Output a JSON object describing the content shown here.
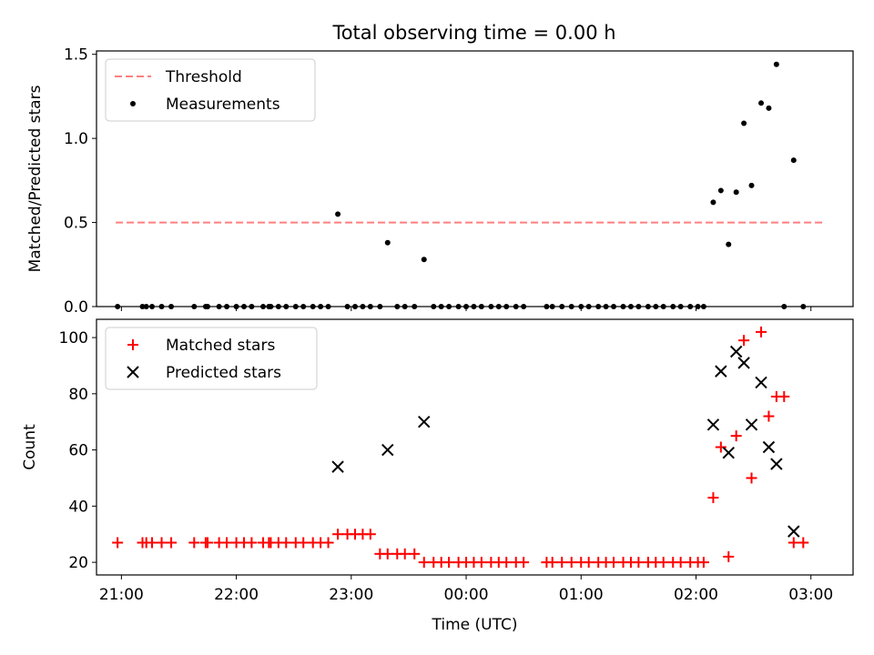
{
  "title": "Total observing time = 0.00 h",
  "chart_data": [
    {
      "type": "scatter",
      "panel": "top",
      "ylabel": "Matched/Predicted stars",
      "ylim": [
        0,
        1.52
      ],
      "xlim": [
        "20:47",
        "03:22"
      ],
      "yticks": [
        0.0,
        0.5,
        1.0,
        1.5
      ],
      "ytick_labels": [
        "0.0",
        "0.5",
        "1.0",
        "1.5"
      ],
      "legend": {
        "placement": "top-left",
        "entries": [
          "Threshold",
          "Measurements"
        ]
      },
      "threshold": {
        "name": "Threshold",
        "y": 0.5,
        "x_start": "20:57",
        "x_end": "03:06",
        "color": "#ff7f7f",
        "style": "dashed"
      },
      "series": [
        {
          "name": "Measurements",
          "color": "#000000",
          "points": [
            [
              "20:58",
              0
            ],
            [
              "21:11",
              0
            ],
            [
              "21:13",
              0
            ],
            [
              "21:16",
              0
            ],
            [
              "21:21",
              0
            ],
            [
              "21:26",
              0
            ],
            [
              "21:38",
              0
            ],
            [
              "21:44",
              0
            ],
            [
              "21:45",
              0
            ],
            [
              "21:51",
              0
            ],
            [
              "21:55",
              0
            ],
            [
              "22:00",
              0
            ],
            [
              "22:04",
              0
            ],
            [
              "22:08",
              0
            ],
            [
              "22:14",
              0
            ],
            [
              "22:17",
              0
            ],
            [
              "22:18",
              0
            ],
            [
              "22:22",
              0
            ],
            [
              "22:26",
              0
            ],
            [
              "22:31",
              0
            ],
            [
              "22:35",
              0
            ],
            [
              "22:40",
              0
            ],
            [
              "22:44",
              0
            ],
            [
              "22:48",
              0
            ],
            [
              "22:53",
              0.55
            ],
            [
              "22:58",
              0
            ],
            [
              "23:02",
              0
            ],
            [
              "23:06",
              0
            ],
            [
              "23:10",
              0
            ],
            [
              "23:19",
              0.38
            ],
            [
              "23:15",
              0
            ],
            [
              "23:24",
              0
            ],
            [
              "23:28",
              0
            ],
            [
              "23:33",
              0
            ],
            [
              "23:38",
              0.28
            ],
            [
              "23:43",
              0
            ],
            [
              "23:47",
              0
            ],
            [
              "23:51",
              0
            ],
            [
              "23:56",
              0
            ],
            [
              "00:00",
              0
            ],
            [
              "00:04",
              0
            ],
            [
              "00:08",
              0
            ],
            [
              "00:13",
              0
            ],
            [
              "00:17",
              0
            ],
            [
              "00:21",
              0
            ],
            [
              "00:26",
              0
            ],
            [
              "00:30",
              0
            ],
            [
              "00:42",
              0
            ],
            [
              "00:45",
              0
            ],
            [
              "00:50",
              0
            ],
            [
              "00:55",
              0
            ],
            [
              "01:00",
              0
            ],
            [
              "01:04",
              0
            ],
            [
              "01:09",
              0
            ],
            [
              "01:13",
              0
            ],
            [
              "01:17",
              0
            ],
            [
              "01:22",
              0
            ],
            [
              "01:26",
              0
            ],
            [
              "01:30",
              0
            ],
            [
              "01:35",
              0
            ],
            [
              "01:39",
              0
            ],
            [
              "01:43",
              0
            ],
            [
              "01:48",
              0
            ],
            [
              "01:52",
              0
            ],
            [
              "01:57",
              0
            ],
            [
              "02:01",
              0
            ],
            [
              "02:04",
              0
            ],
            [
              "02:09",
              0.62
            ],
            [
              "02:13",
              0.69
            ],
            [
              "02:17",
              0.37
            ],
            [
              "02:21",
              0.68
            ],
            [
              "02:25",
              1.09
            ],
            [
              "02:29",
              0.72
            ],
            [
              "02:34",
              1.21
            ],
            [
              "02:38",
              1.18
            ],
            [
              "02:42",
              1.44
            ],
            [
              "02:46",
              0
            ],
            [
              "02:51",
              0.87
            ],
            [
              "02:56",
              0
            ]
          ]
        }
      ]
    },
    {
      "type": "scatter",
      "panel": "bottom",
      "xlabel": "Time (UTC)",
      "ylabel": "Count",
      "ylim": [
        15.5,
        106.5
      ],
      "xlim": [
        "20:47",
        "03:22"
      ],
      "xticks": [
        "21:00",
        "22:00",
        "23:00",
        "00:00",
        "01:00",
        "02:00",
        "03:00"
      ],
      "yticks": [
        20,
        40,
        60,
        80,
        100
      ],
      "ytick_labels": [
        "20",
        "40",
        "60",
        "80",
        "100"
      ],
      "legend": {
        "placement": "top-left",
        "entries": [
          "Matched stars",
          "Predicted stars"
        ]
      },
      "series": [
        {
          "name": "Matched stars",
          "marker": "plus",
          "color": "#ff0000",
          "points": [
            [
              "20:58",
              27
            ],
            [
              "21:11",
              27
            ],
            [
              "21:13",
              27
            ],
            [
              "21:16",
              27
            ],
            [
              "21:21",
              27
            ],
            [
              "21:26",
              27
            ],
            [
              "21:38",
              27
            ],
            [
              "21:44",
              27
            ],
            [
              "21:45",
              27
            ],
            [
              "21:51",
              27
            ],
            [
              "21:55",
              27
            ],
            [
              "22:00",
              27
            ],
            [
              "22:04",
              27
            ],
            [
              "22:08",
              27
            ],
            [
              "22:14",
              27
            ],
            [
              "22:17",
              27
            ],
            [
              "22:18",
              27
            ],
            [
              "22:22",
              27
            ],
            [
              "22:26",
              27
            ],
            [
              "22:31",
              27
            ],
            [
              "22:35",
              27
            ],
            [
              "22:40",
              27
            ],
            [
              "22:44",
              27
            ],
            [
              "22:48",
              27
            ],
            [
              "22:53",
              30
            ],
            [
              "22:58",
              30
            ],
            [
              "23:02",
              30
            ],
            [
              "23:06",
              30
            ],
            [
              "23:10",
              30
            ],
            [
              "23:15",
              23
            ],
            [
              "23:19",
              23
            ],
            [
              "23:24",
              23
            ],
            [
              "23:28",
              23
            ],
            [
              "23:33",
              23
            ],
            [
              "23:38",
              20
            ],
            [
              "23:43",
              20
            ],
            [
              "23:47",
              20
            ],
            [
              "23:51",
              20
            ],
            [
              "23:56",
              20
            ],
            [
              "00:00",
              20
            ],
            [
              "00:04",
              20
            ],
            [
              "00:08",
              20
            ],
            [
              "00:13",
              20
            ],
            [
              "00:17",
              20
            ],
            [
              "00:21",
              20
            ],
            [
              "00:26",
              20
            ],
            [
              "00:30",
              20
            ],
            [
              "00:42",
              20
            ],
            [
              "00:45",
              20
            ],
            [
              "00:50",
              20
            ],
            [
              "00:55",
              20
            ],
            [
              "01:00",
              20
            ],
            [
              "01:04",
              20
            ],
            [
              "01:09",
              20
            ],
            [
              "01:13",
              20
            ],
            [
              "01:17",
              20
            ],
            [
              "01:22",
              20
            ],
            [
              "01:26",
              20
            ],
            [
              "01:30",
              20
            ],
            [
              "01:35",
              20
            ],
            [
              "01:39",
              20
            ],
            [
              "01:43",
              20
            ],
            [
              "01:48",
              20
            ],
            [
              "01:52",
              20
            ],
            [
              "01:57",
              20
            ],
            [
              "02:01",
              20
            ],
            [
              "02:04",
              20
            ],
            [
              "02:09",
              43
            ],
            [
              "02:13",
              61
            ],
            [
              "02:17",
              22
            ],
            [
              "02:21",
              65
            ],
            [
              "02:25",
              99
            ],
            [
              "02:29",
              50
            ],
            [
              "02:34",
              102
            ],
            [
              "02:38",
              72
            ],
            [
              "02:42",
              79
            ],
            [
              "02:46",
              79
            ],
            [
              "02:51",
              27
            ],
            [
              "02:56",
              27
            ]
          ]
        },
        {
          "name": "Predicted stars",
          "marker": "x",
          "color": "#000000",
          "points": [
            [
              "22:53",
              54
            ],
            [
              "23:19",
              60
            ],
            [
              "23:38",
              70
            ],
            [
              "02:09",
              69
            ],
            [
              "02:13",
              88
            ],
            [
              "02:17",
              59
            ],
            [
              "02:21",
              95
            ],
            [
              "02:25",
              91
            ],
            [
              "02:29",
              69
            ],
            [
              "02:34",
              84
            ],
            [
              "02:38",
              61
            ],
            [
              "02:42",
              55
            ],
            [
              "02:51",
              31
            ]
          ]
        }
      ]
    }
  ]
}
